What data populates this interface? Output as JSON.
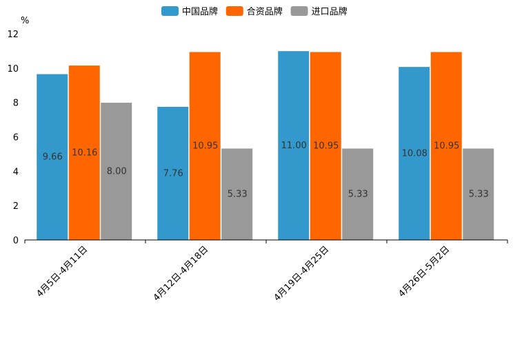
{
  "chart_data": {
    "type": "bar",
    "unit": "%",
    "categories": [
      "4月5日-4月11日",
      "4月12日-4月18日",
      "4月19日-4月25日",
      "4月26日-5月2日"
    ],
    "series": [
      {
        "name": "中国品牌",
        "color": "#3399cc",
        "values": [
          9.66,
          7.76,
          11.0,
          10.08
        ],
        "labels": [
          "9.66",
          "7.76",
          "11.00",
          "10.08"
        ]
      },
      {
        "name": "合资品牌",
        "color": "#ff6600",
        "values": [
          10.16,
          10.95,
          10.95,
          10.95
        ],
        "labels": [
          "10.16",
          "10.95",
          "10.95",
          "10.95"
        ]
      },
      {
        "name": "进口品牌",
        "color": "#999999",
        "values": [
          8.0,
          5.33,
          5.33,
          5.33
        ],
        "labels": [
          "8.00",
          "5.33",
          "5.33",
          "5.33"
        ]
      }
    ],
    "ylim": [
      0,
      12
    ],
    "yticks": [
      0,
      2,
      4,
      6,
      8,
      10,
      12
    ],
    "legend": "top-center",
    "grid": false
  }
}
